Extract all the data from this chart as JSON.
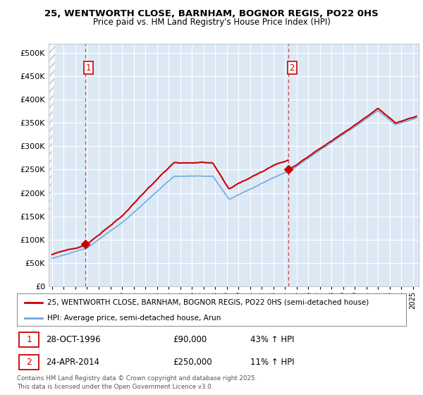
{
  "title1": "25, WENTWORTH CLOSE, BARNHAM, BOGNOR REGIS, PO22 0HS",
  "title2": "Price paid vs. HM Land Registry's House Price Index (HPI)",
  "ylabel_vals": [
    0,
    50000,
    100000,
    150000,
    200000,
    250000,
    300000,
    350000,
    400000,
    450000,
    500000
  ],
  "ylim": [
    0,
    520000
  ],
  "xlim_start": 1993.7,
  "xlim_end": 2025.5,
  "sale1_date": 1996.83,
  "sale1_price": 90000,
  "sale2_date": 2014.31,
  "sale2_price": 250000,
  "legend_line1": "25, WENTWORTH CLOSE, BARNHAM, BOGNOR REGIS, PO22 0HS (semi-detached house)",
  "legend_line2": "HPI: Average price, semi-detached house, Arun",
  "footer": "Contains HM Land Registry data © Crown copyright and database right 2025.\nThis data is licensed under the Open Government Licence v3.0.",
  "red_color": "#cc0000",
  "blue_color": "#6fa8dc",
  "bg_color": "#dce9f5"
}
